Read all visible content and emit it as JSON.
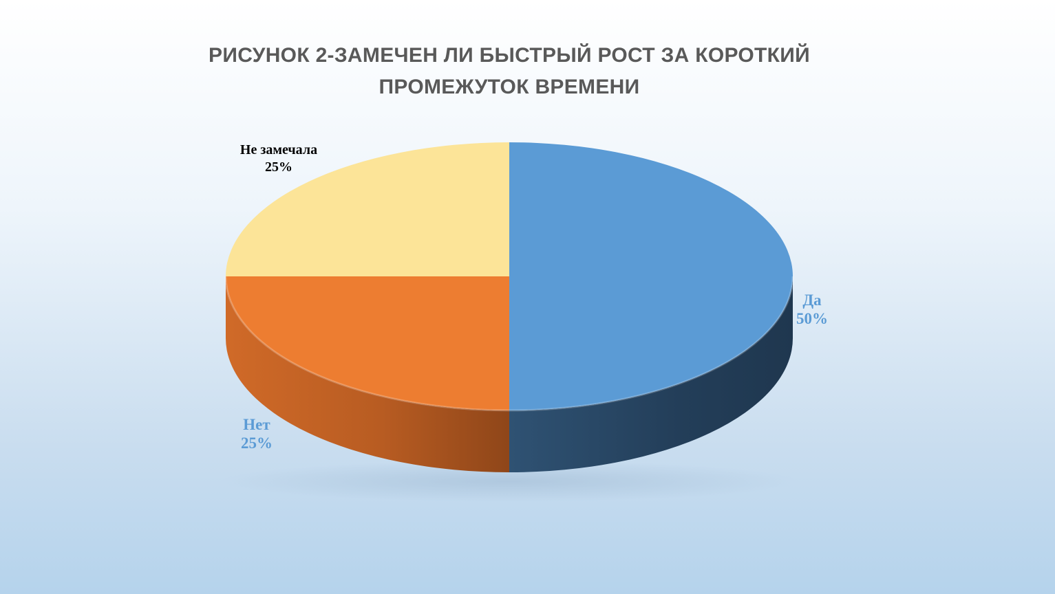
{
  "chart_data": {
    "type": "pie",
    "title_lines": [
      "РИСУНОК 2-ЗАМЕЧЕН ЛИ БЫСТРЫЙ РОСТ ЗА КОРОТКИЙ",
      "ПРОМЕЖУТОК ВРЕМЕНИ"
    ],
    "style": "3d",
    "slices": [
      {
        "label": "Да",
        "percent_label": "50%",
        "value": 50,
        "color": "#5b9bd5",
        "side_color": "#223d58",
        "label_color": "#5b9bd5"
      },
      {
        "label": "Нет",
        "percent_label": "25%",
        "value": 25,
        "color": "#ed7d31",
        "side_color": "#a9521c",
        "label_color": "#5b9bd5"
      },
      {
        "label": "Не замечала",
        "percent_label": "25%",
        "value": 25,
        "color": "#fce498",
        "side_color": "#c9b06a",
        "label_color": "#000000"
      }
    ]
  }
}
